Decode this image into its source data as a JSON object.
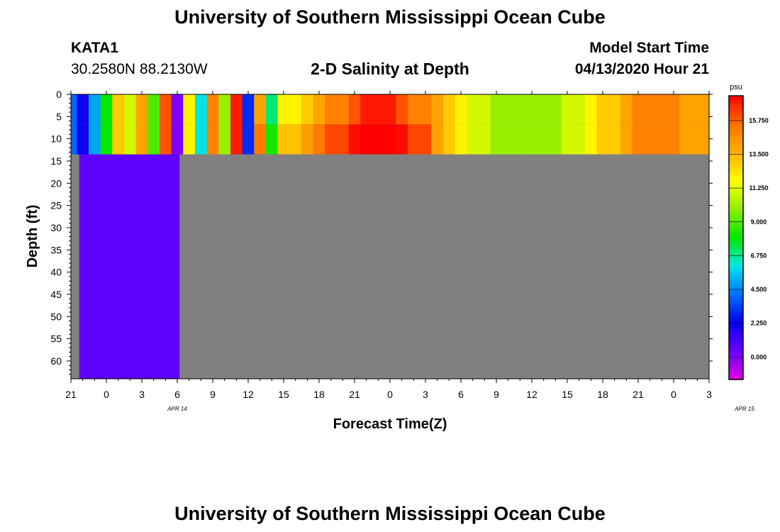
{
  "header": {
    "title": "University of Southern Mississippi Ocean Cube",
    "station": "KATA1",
    "coords": "30.2580N 88.2130W",
    "plot_title": "2-D Salinity at Depth",
    "model_start_label": "Model Start Time",
    "model_start_value": "04/13/2020 Hour 21"
  },
  "footer": {
    "title": "University of Southern Mississippi Ocean Cube"
  },
  "chart_data": {
    "type": "heatmap",
    "title": "2-D Salinity at Depth",
    "xlabel": "Forecast Time(Z)",
    "ylabel": "Depth (ft)",
    "x_tick_labels": [
      "21",
      "0",
      "3",
      "6",
      "9",
      "12",
      "15",
      "18",
      "21",
      "0",
      "3",
      "6",
      "9",
      "12",
      "15",
      "18",
      "21",
      "0",
      "3"
    ],
    "x_date_labels": [
      {
        "label": "APR 14",
        "hour": 9
      },
      {
        "label": "APR 15",
        "hour": 57
      }
    ],
    "x_range_hours": [
      0,
      54
    ],
    "y_ticks": [
      0,
      5,
      10,
      15,
      20,
      25,
      30,
      35,
      40,
      45,
      50,
      55,
      60
    ],
    "y_range": [
      0,
      64
    ],
    "y_inverted": true,
    "data_depth_limit_ft": 13.5,
    "colorbar": {
      "unit": "psu",
      "ticks": [
        "0.000",
        "2.250",
        "4.500",
        "6.750",
        "9.000",
        "11.250",
        "13.500",
        "15.750"
      ],
      "min": -1.5,
      "max": 17.4,
      "colors": [
        "#e000e0",
        "#6a00ff",
        "#0000ee",
        "#0070ff",
        "#00e8e8",
        "#00e800",
        "#90ee00",
        "#ffff00",
        "#ffb000",
        "#ff7000",
        "#ff0000"
      ]
    },
    "no_data_color": "#808080",
    "deep_layer_color": "#6000ff",
    "series": [
      {
        "name": "surface layer (0-13.5 ft)",
        "time_hours": [
          0,
          1,
          2,
          3,
          4,
          5,
          6,
          7,
          8,
          9,
          10,
          11,
          12,
          13,
          14,
          15,
          16,
          17,
          18,
          19,
          20,
          21,
          22,
          23,
          24,
          25,
          26,
          27,
          28,
          29,
          30,
          31,
          32,
          33,
          34,
          35,
          36,
          37,
          38,
          39,
          40,
          41,
          42,
          43,
          44,
          45,
          46,
          47,
          48,
          49,
          50,
          51,
          52,
          53,
          54
        ],
        "salinity_psu": [
          4,
          2,
          5,
          8,
          13,
          11,
          14,
          9,
          16,
          0,
          12,
          6,
          15,
          10,
          17,
          3,
          14,
          7,
          12,
          12,
          13,
          14,
          15,
          15,
          16,
          17,
          17,
          17,
          16,
          15,
          15,
          14,
          13,
          12,
          11,
          11,
          10,
          10,
          10,
          10,
          10,
          10,
          11,
          11,
          12,
          13,
          13,
          14,
          15,
          15,
          15,
          15,
          14,
          14,
          14
        ]
      }
    ]
  }
}
